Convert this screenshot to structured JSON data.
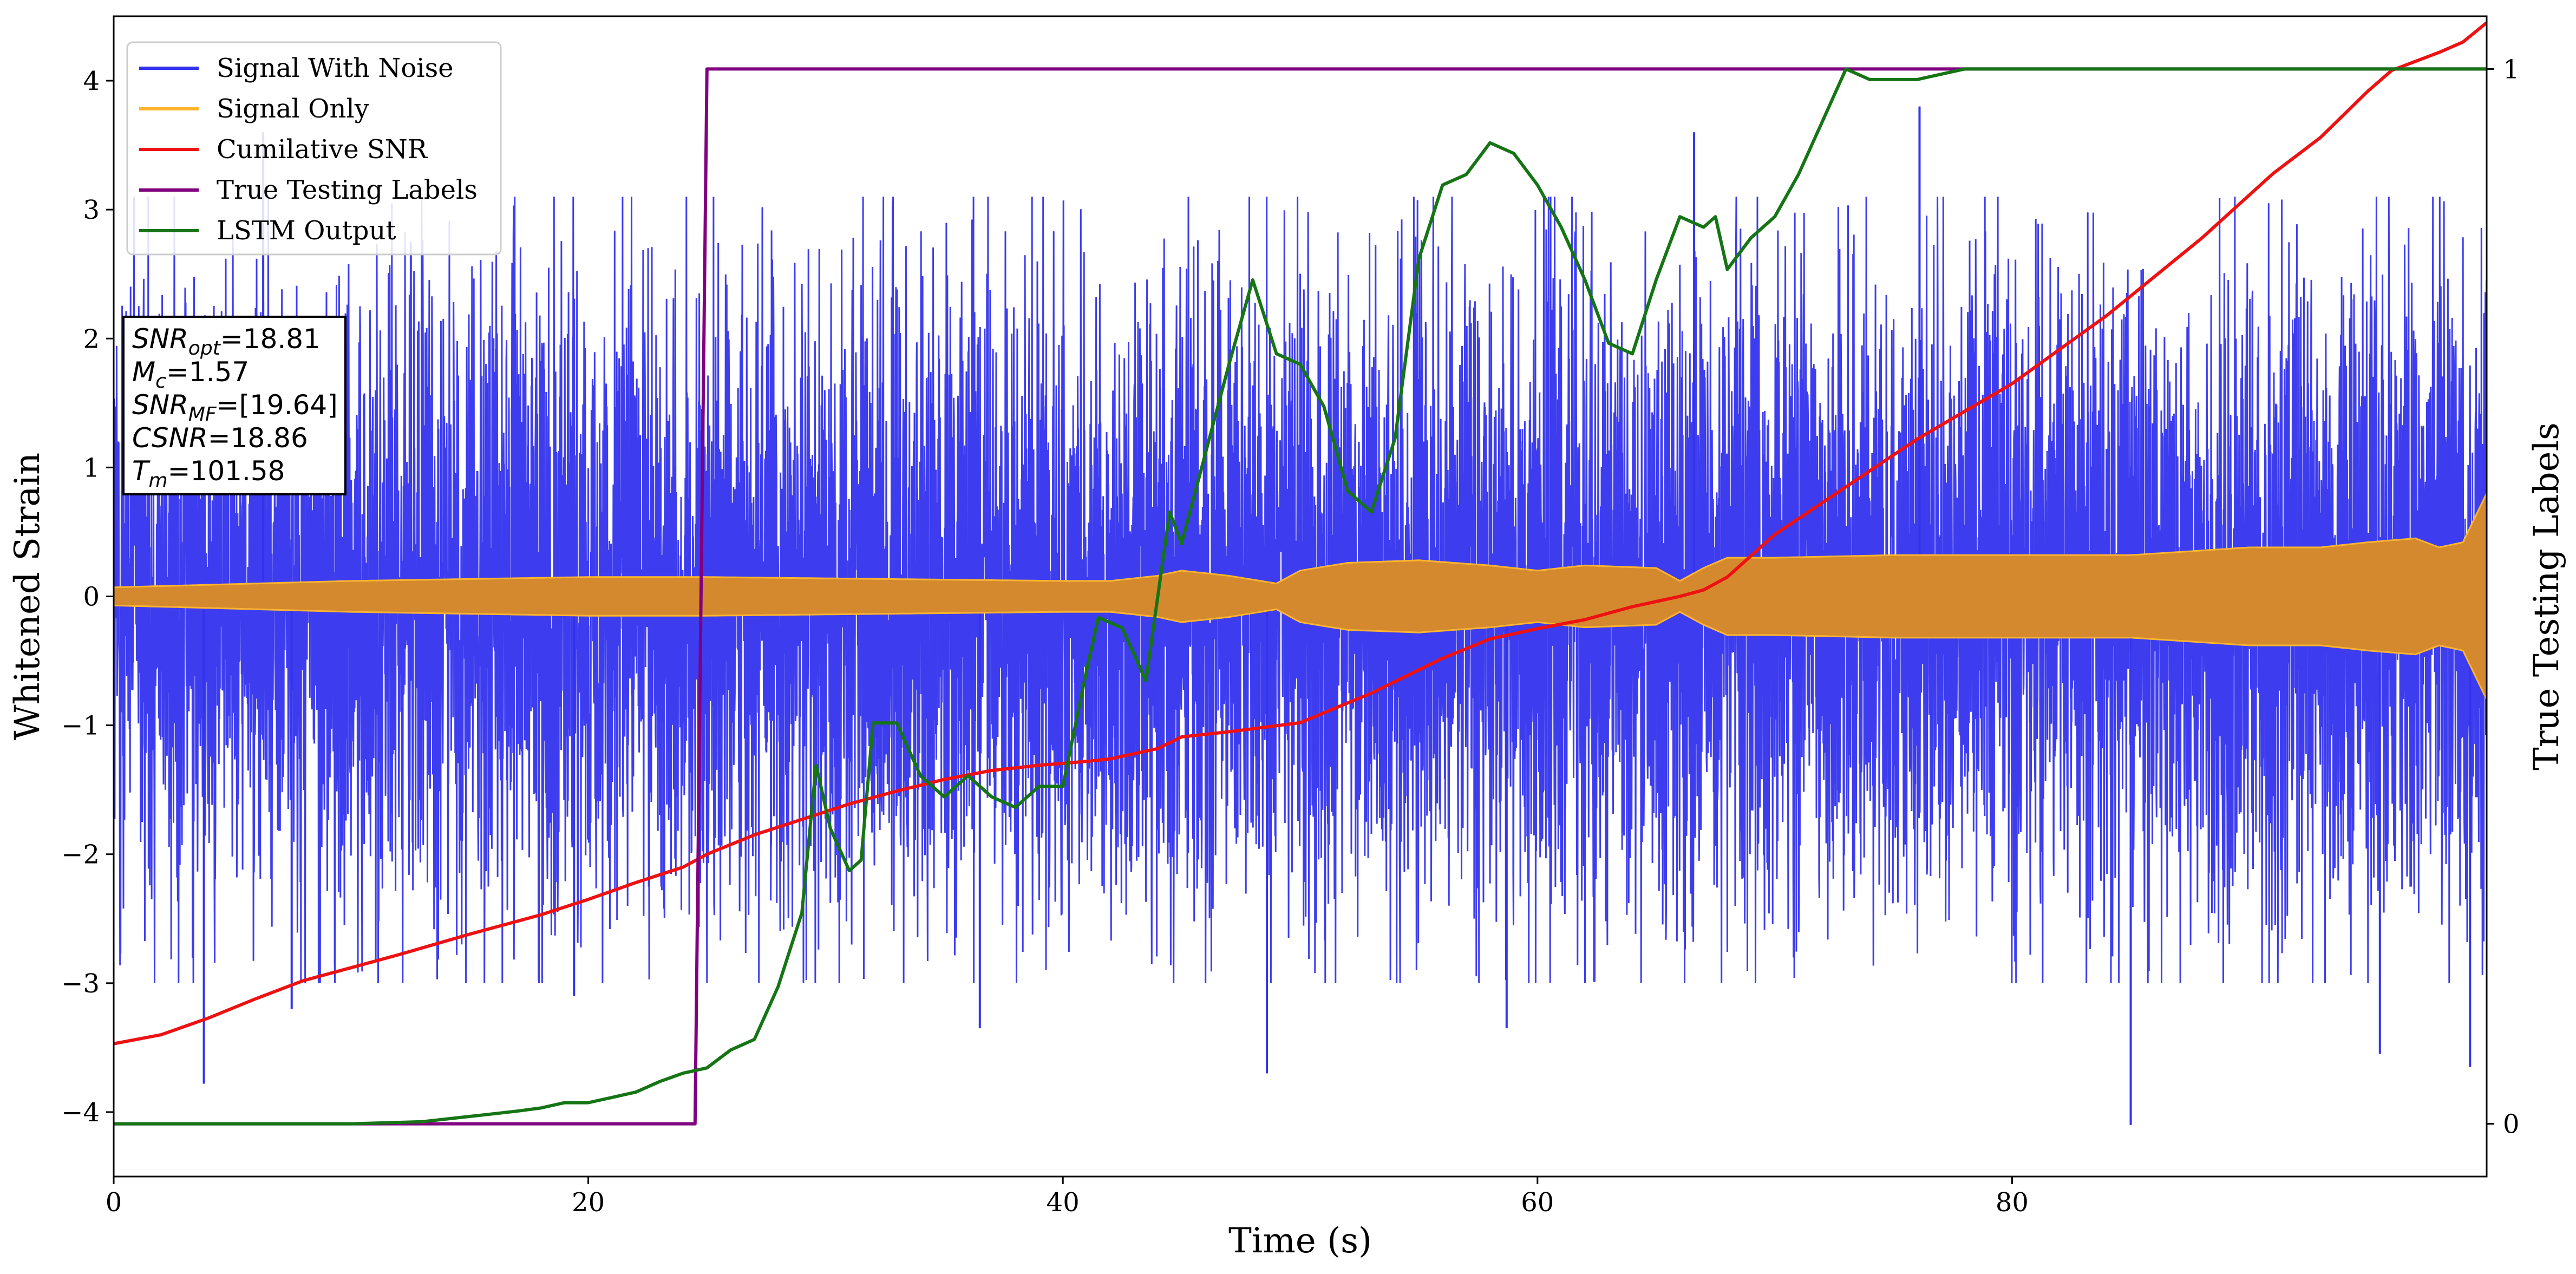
{
  "chart_data": {
    "type": "line",
    "xlabel": "Time (s)",
    "ylabel": "Whitened Strain",
    "ylabel_right": "True Testing Labels",
    "xlim": [
      0,
      100
    ],
    "ylim": [
      -4.5,
      4.5
    ],
    "ylim_right": [
      -0.05,
      1.05
    ],
    "x_ticks": [
      0,
      20,
      40,
      60,
      80
    ],
    "y_ticks": [
      -4,
      -3,
      -2,
      -1,
      0,
      1,
      2,
      3,
      4
    ],
    "y_tick_labels": [
      "−4",
      "−3",
      "−2",
      "−1",
      "0",
      "1",
      "2",
      "3",
      "4"
    ],
    "y_right_ticks": [
      0,
      1
    ],
    "grid": false,
    "legend_placement": "upper-left",
    "annotation_box": {
      "lines": [
        {
          "main": "SNR",
          "sub": "opt",
          "value": "=18.81"
        },
        {
          "main": "M",
          "sub": "c",
          "value": "=1.57"
        },
        {
          "main": "SNR",
          "sub": "MF",
          "value": "=[19.64]"
        },
        {
          "main": "CSNR",
          "sub": "",
          "value": "=18.86"
        },
        {
          "main": "T",
          "sub": "m",
          "value": "=101.58"
        }
      ]
    },
    "series": [
      {
        "name": "Signal With Noise",
        "color": "#3333ee",
        "axis": "left",
        "style": "dense noise band",
        "envelope": {
          "x": [
            0,
            10,
            20,
            30,
            40,
            45,
            50,
            55,
            60,
            65,
            70,
            75,
            80,
            85,
            90,
            95,
            100
          ],
          "typical_upper": [
            2.0,
            2.0,
            2.0,
            2.0,
            2.0,
            2.0,
            2.0,
            2.0,
            2.0,
            2.0,
            2.0,
            2.0,
            2.0,
            2.0,
            2.0,
            2.0,
            2.0
          ],
          "typical_lower": [
            -2.0,
            -2.0,
            -2.0,
            -2.0,
            -2.0,
            -2.0,
            -2.0,
            -2.0,
            -2.0,
            -2.0,
            -2.0,
            -2.0,
            -2.0,
            -2.0,
            -2.0,
            -2.0,
            -2.0
          ]
        },
        "peaks": [
          {
            "x": 3.8,
            "y": -3.78
          },
          {
            "x": 6.3,
            "y": 3.6
          },
          {
            "x": 7.5,
            "y": -3.2
          },
          {
            "x": 19.4,
            "y": -3.1
          },
          {
            "x": 36.5,
            "y": -3.35
          },
          {
            "x": 48.6,
            "y": -3.7
          },
          {
            "x": 58.7,
            "y": -3.35
          },
          {
            "x": 66.6,
            "y": 3.6
          },
          {
            "x": 76.1,
            "y": 3.8
          },
          {
            "x": 85.0,
            "y": -4.1
          },
          {
            "x": 95.5,
            "y": -3.55
          },
          {
            "x": 99.3,
            "y": -3.65
          }
        ]
      },
      {
        "name": "Signal Only",
        "color": "#ffb52e",
        "fill_color": "#d4892f",
        "axis": "left",
        "style": "oscillating band",
        "envelope": {
          "x": [
            0,
            10,
            20,
            25,
            30,
            40,
            42,
            44,
            45,
            47,
            49,
            50,
            52,
            55,
            58,
            60,
            62,
            65,
            66,
            67,
            68,
            70,
            75,
            80,
            85,
            90,
            93,
            95,
            97,
            98,
            99,
            100
          ],
          "amplitude": [
            0.07,
            0.12,
            0.15,
            0.15,
            0.14,
            0.12,
            0.12,
            0.16,
            0.2,
            0.16,
            0.1,
            0.2,
            0.26,
            0.28,
            0.24,
            0.2,
            0.24,
            0.22,
            0.12,
            0.22,
            0.3,
            0.3,
            0.32,
            0.32,
            0.32,
            0.38,
            0.38,
            0.42,
            0.45,
            0.38,
            0.42,
            0.8
          ]
        }
      },
      {
        "name": "Cumilative SNR",
        "color": "#ee1111",
        "axis": "left",
        "x": [
          0,
          2,
          4,
          6,
          8,
          10,
          12,
          15,
          18,
          20,
          22,
          24,
          25,
          27,
          29,
          31,
          33,
          35,
          37,
          39,
          41,
          42,
          44,
          45,
          47,
          50,
          53,
          56,
          58,
          60,
          62,
          64,
          66,
          67,
          68,
          70,
          73,
          76,
          80,
          84,
          88,
          91,
          93,
          95,
          96,
          97,
          98,
          99,
          100
        ],
        "y": [
          -3.47,
          -3.4,
          -3.27,
          -3.12,
          -2.98,
          -2.88,
          -2.78,
          -2.62,
          -2.47,
          -2.35,
          -2.22,
          -2.1,
          -2.0,
          -1.85,
          -1.73,
          -1.61,
          -1.51,
          -1.42,
          -1.35,
          -1.31,
          -1.28,
          -1.26,
          -1.18,
          -1.09,
          -1.05,
          -0.98,
          -0.75,
          -0.48,
          -0.33,
          -0.25,
          -0.18,
          -0.08,
          0.0,
          0.05,
          0.15,
          0.48,
          0.85,
          1.22,
          1.65,
          2.18,
          2.78,
          3.28,
          3.56,
          3.92,
          4.08,
          4.15,
          4.22,
          4.3,
          4.45
        ]
      },
      {
        "name": "True Testing Labels",
        "color": "#800080",
        "axis": "right",
        "x": [
          0,
          24.5,
          25.0,
          100
        ],
        "y": [
          0,
          0,
          1,
          1
        ]
      },
      {
        "name": "LSTM Output",
        "color": "#157515",
        "axis": "right",
        "x": [
          0,
          5,
          10,
          13,
          15,
          17,
          18,
          19,
          20,
          21,
          22,
          23,
          24,
          25,
          26,
          27,
          28,
          29,
          29.6,
          30.2,
          31,
          31.5,
          32,
          32.4,
          33,
          34,
          35,
          36,
          37,
          38,
          39,
          40,
          41,
          41.5,
          42.5,
          43.5,
          44.5,
          45,
          47,
          48,
          49,
          50,
          51,
          52,
          53,
          54,
          55,
          56,
          57,
          58,
          59,
          60,
          61,
          62,
          63,
          64,
          65,
          66,
          67,
          67.5,
          68,
          69,
          70,
          71,
          72,
          73,
          74,
          75,
          76,
          78,
          80,
          100
        ],
        "y": [
          0,
          0,
          0,
          0.002,
          0.007,
          0.012,
          0.015,
          0.02,
          0.02,
          0.025,
          0.03,
          0.04,
          0.048,
          0.053,
          0.07,
          0.08,
          0.13,
          0.2,
          0.34,
          0.28,
          0.24,
          0.25,
          0.38,
          0.38,
          0.38,
          0.33,
          0.31,
          0.33,
          0.31,
          0.3,
          0.32,
          0.32,
          0.43,
          0.48,
          0.47,
          0.42,
          0.58,
          0.55,
          0.72,
          0.8,
          0.73,
          0.72,
          0.68,
          0.6,
          0.58,
          0.65,
          0.82,
          0.89,
          0.9,
          0.93,
          0.92,
          0.89,
          0.85,
          0.8,
          0.74,
          0.73,
          0.8,
          0.86,
          0.85,
          0.86,
          0.81,
          0.84,
          0.86,
          0.9,
          0.95,
          1.0,
          0.99,
          0.99,
          0.99,
          1.0,
          1.0,
          1.0
        ]
      }
    ]
  }
}
